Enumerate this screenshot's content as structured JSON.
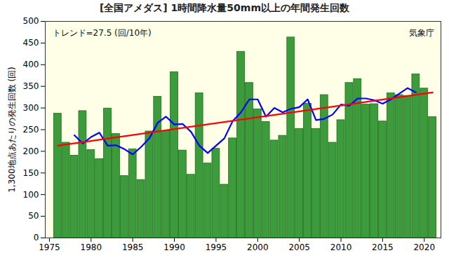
{
  "chart_data": {
    "type": "bar",
    "title": "[全国アメダス] 1時間降水量50mm以上の年間発生回数",
    "ylabel": "1,300地点あたりの発生回数 (回)",
    "annotations": [
      "トレンド=27.5 (回/10年)",
      "気象庁"
    ],
    "x": [
      1976,
      1977,
      1978,
      1979,
      1980,
      1981,
      1982,
      1983,
      1984,
      1985,
      1986,
      1987,
      1988,
      1989,
      1990,
      1991,
      1992,
      1993,
      1994,
      1995,
      1996,
      1997,
      1998,
      1999,
      2000,
      2001,
      2002,
      2003,
      2004,
      2005,
      2006,
      2007,
      2008,
      2009,
      2010,
      2011,
      2012,
      2013,
      2014,
      2015,
      2016,
      2017,
      2018,
      2019,
      2020,
      2021
    ],
    "series": [
      {
        "type": "bar",
        "color": "#3c9c3c",
        "values": [
          287,
          220,
          190,
          293,
          203,
          182,
          299,
          240,
          143,
          205,
          134,
          246,
          326,
          247,
          383,
          202,
          146,
          334,
          172,
          206,
          123,
          230,
          430,
          358,
          297,
          268,
          225,
          236,
          463,
          252,
          310,
          252,
          330,
          220,
          272,
          358,
          367,
          308,
          309,
          269,
          334,
          330,
          328,
          378,
          345,
          279
        ]
      },
      {
        "type": "line",
        "color": "#0000ff",
        "values": [
          null,
          null,
          237,
          218,
          233,
          243,
          213,
          214,
          205,
          193,
          210,
          230,
          266,
          280,
          262,
          263,
          245,
          213,
          196,
          213,
          230,
          270,
          290,
          320,
          320,
          280,
          300,
          290,
          298,
          302,
          320,
          272,
          275,
          285,
          308,
          305,
          322,
          322,
          318,
          310,
          320,
          333,
          346,
          336,
          null,
          null
        ]
      },
      {
        "type": "line",
        "color": "#ff0000",
        "x": [
          1976,
          2021
        ],
        "values": [
          213,
          336
        ]
      }
    ],
    "xlim": [
      1974.5,
      2022
    ],
    "xticks": [
      1975,
      1980,
      1985,
      1990,
      1995,
      2000,
      2005,
      2010,
      2015,
      2020
    ],
    "ylim": [
      0,
      500
    ],
    "yticks": [
      0,
      50,
      100,
      150,
      200,
      250,
      300,
      350,
      400,
      450,
      500
    ],
    "grid": false
  }
}
